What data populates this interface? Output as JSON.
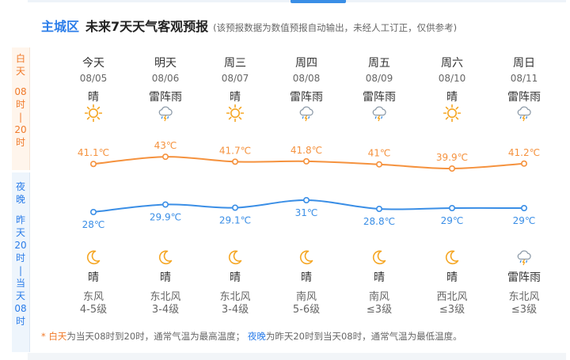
{
  "header": {
    "district": "主城区",
    "title": "未来7天天气客观预报",
    "note": "(该预报数据为数值预报自动输出，未经人工订正，仅供参考)"
  },
  "side": {
    "day": [
      "白",
      "天",
      "",
      "08",
      "时",
      "|",
      "20",
      "时"
    ],
    "night": [
      "夜",
      "晚",
      "",
      "昨",
      "天",
      "20",
      "时",
      "|",
      "当",
      "天",
      "08",
      "时"
    ]
  },
  "days": [
    {
      "name": "今天",
      "date": "08/05",
      "day_cond": "晴",
      "day_icon": "sun-icon",
      "high": "41.1℃",
      "night_cond": "晴",
      "night_icon": "moon-icon",
      "low": "28℃",
      "wind_dir": "东风",
      "wind_lvl": "4-5级"
    },
    {
      "name": "明天",
      "date": "08/06",
      "day_cond": "雷阵雨",
      "day_icon": "thunderstorm-icon",
      "high": "43℃",
      "night_cond": "晴",
      "night_icon": "moon-icon",
      "low": "29.9℃",
      "wind_dir": "东北风",
      "wind_lvl": "3-4级"
    },
    {
      "name": "周三",
      "date": "08/07",
      "day_cond": "晴",
      "day_icon": "sun-icon",
      "high": "41.7℃",
      "night_cond": "晴",
      "night_icon": "moon-icon",
      "low": "29.1℃",
      "wind_dir": "东北风",
      "wind_lvl": "3-4级"
    },
    {
      "name": "周四",
      "date": "08/08",
      "day_cond": "雷阵雨",
      "day_icon": "thunderstorm-icon",
      "high": "41.8℃",
      "night_cond": "晴",
      "night_icon": "moon-icon",
      "low": "31℃",
      "wind_dir": "南风",
      "wind_lvl": "5-6级"
    },
    {
      "name": "周五",
      "date": "08/09",
      "day_cond": "雷阵雨",
      "day_icon": "thunderstorm-icon",
      "high": "41℃",
      "night_cond": "晴",
      "night_icon": "moon-icon",
      "low": "28.8℃",
      "wind_dir": "南风",
      "wind_lvl": "≤3级"
    },
    {
      "name": "周六",
      "date": "08/10",
      "day_cond": "晴",
      "day_icon": "sun-icon",
      "high": "39.9℃",
      "night_cond": "晴",
      "night_icon": "moon-icon",
      "low": "29℃",
      "wind_dir": "西北风",
      "wind_lvl": "≤3级"
    },
    {
      "name": "周日",
      "date": "08/11",
      "day_cond": "雷阵雨",
      "day_icon": "thunderstorm-icon",
      "high": "41.2℃",
      "night_cond": "雷阵雨",
      "night_icon": "thunderstorm-icon",
      "low": "29℃",
      "wind_dir": "东北风",
      "wind_lvl": "≤3级"
    }
  ],
  "chart_data": {
    "type": "line",
    "categories": [
      "08/05",
      "08/06",
      "08/07",
      "08/08",
      "08/09",
      "08/10",
      "08/11"
    ],
    "series": [
      {
        "values": [
          41.1,
          43,
          41.7,
          41.8,
          41,
          39.9,
          41.2
        ],
        "color": "#f5923e"
      },
      {
        "values": [
          28,
          29.9,
          29.1,
          31,
          28.8,
          29,
          29
        ],
        "color": "#3a8ee6"
      }
    ]
  },
  "footnote": {
    "star": "*",
    "day_label": "白天",
    "day_text": "为当天08时到20时，通常气温为最高温度；",
    "night_label": "夜晚",
    "night_text": "为昨天20时到当天08时，通常气温为最低温度。"
  },
  "colors": {
    "accent": "#2b7de9",
    "day": "#f07a2a",
    "sun": "#f5a623"
  }
}
